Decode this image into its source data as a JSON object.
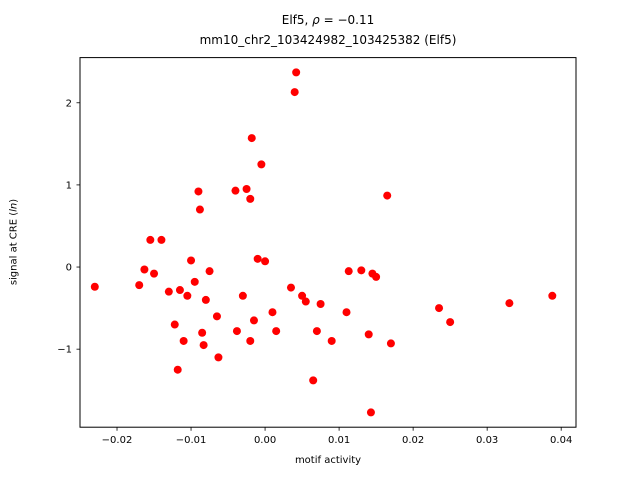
{
  "chart_data": {
    "type": "scatter",
    "title": {
      "prefix": "Elf5, ",
      "rho": "ρ",
      "suffix": " = −0.11"
    },
    "title_line2": "mm10_chr2_103424982_103425382 (Elf5)",
    "xlabel": "motif activity",
    "ylabel": {
      "prefix": "signal at CRE (",
      "italic": "ln",
      "suffix": ")"
    },
    "xlim": [
      -0.025,
      0.042
    ],
    "ylim": [
      -1.95,
      2.55
    ],
    "xticks": [
      -0.02,
      -0.01,
      0.0,
      0.01,
      0.02,
      0.03,
      0.04
    ],
    "yticks": [
      -1,
      0,
      1,
      2
    ],
    "grid": false,
    "legend": "none",
    "marker_color": "#ff0000",
    "points": [
      [
        -0.023,
        -0.24
      ],
      [
        -0.017,
        -0.22
      ],
      [
        -0.0163,
        -0.03
      ],
      [
        -0.0155,
        0.33
      ],
      [
        -0.014,
        0.33
      ],
      [
        -0.015,
        -0.08
      ],
      [
        -0.013,
        -0.3
      ],
      [
        -0.0122,
        -0.7
      ],
      [
        -0.0118,
        -1.25
      ],
      [
        -0.0115,
        -0.28
      ],
      [
        -0.011,
        -0.9
      ],
      [
        -0.0105,
        -0.35
      ],
      [
        -0.01,
        0.08
      ],
      [
        -0.0095,
        -0.18
      ],
      [
        -0.009,
        0.92
      ],
      [
        -0.0088,
        0.7
      ],
      [
        -0.0085,
        -0.8
      ],
      [
        -0.0083,
        -0.95
      ],
      [
        -0.008,
        -0.4
      ],
      [
        -0.0075,
        -0.05
      ],
      [
        -0.0065,
        -0.6
      ],
      [
        -0.0063,
        -1.1
      ],
      [
        -0.004,
        0.93
      ],
      [
        -0.0038,
        -0.78
      ],
      [
        -0.003,
        -0.35
      ],
      [
        -0.0025,
        0.95
      ],
      [
        -0.002,
        0.83
      ],
      [
        -0.0018,
        1.57
      ],
      [
        -0.002,
        -0.9
      ],
      [
        -0.0015,
        -0.65
      ],
      [
        -0.001,
        0.1
      ],
      [
        -0.0005,
        1.25
      ],
      [
        0.0,
        0.07
      ],
      [
        0.001,
        -0.55
      ],
      [
        0.0015,
        -0.78
      ],
      [
        0.0035,
        -0.25
      ],
      [
        0.004,
        2.13
      ],
      [
        0.0042,
        2.37
      ],
      [
        0.005,
        -0.35
      ],
      [
        0.0055,
        -0.42
      ],
      [
        0.0065,
        -1.38
      ],
      [
        0.007,
        -0.78
      ],
      [
        0.0075,
        -0.45
      ],
      [
        0.009,
        -0.9
      ],
      [
        0.011,
        -0.55
      ],
      [
        0.0113,
        -0.05
      ],
      [
        0.013,
        -0.04
      ],
      [
        0.014,
        -0.82
      ],
      [
        0.0143,
        -1.77
      ],
      [
        0.0145,
        -0.08
      ],
      [
        0.015,
        -0.12
      ],
      [
        0.0165,
        0.87
      ],
      [
        0.017,
        -0.93
      ],
      [
        0.0235,
        -0.5
      ],
      [
        0.025,
        -0.67
      ],
      [
        0.033,
        -0.44
      ],
      [
        0.0388,
        -0.35
      ]
    ]
  }
}
